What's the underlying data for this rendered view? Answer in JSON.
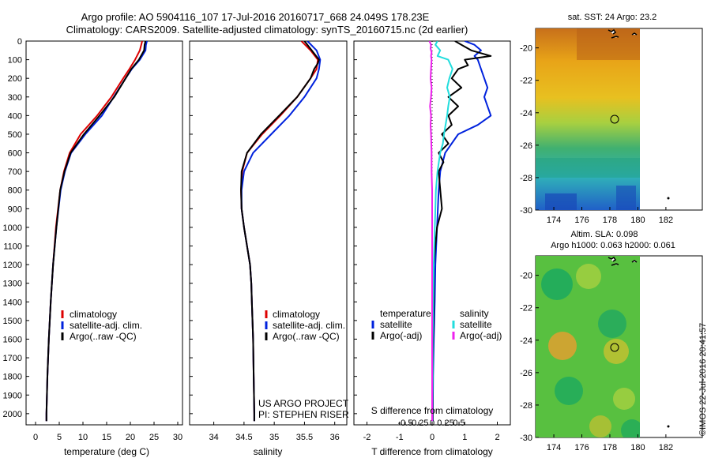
{
  "title_line1": "Argo profile: AO 5904116_107 17-Jul-2016 20160717_668 24.049S 178.23E",
  "title_line2": "Climatology: CARS2009. Satellite-adjusted climatology: synTS_20160715.nc (2d earlier)",
  "credit": "US ARGO PROJECT",
  "pi": "PI: STEPHEN RISER",
  "timestamp": "©IMOS 22-Jul-2016 20:41:57",
  "colors": {
    "clim": "#dd0000",
    "sat": "#0022dd",
    "argo": "#000000",
    "sat_s": "#22dddd",
    "argo_s": "#ee22ee"
  },
  "chart_data": [
    {
      "type": "line",
      "id": "temp",
      "xlabel": "temperature (deg C)",
      "xlim": [
        -2,
        31
      ],
      "xticks": [
        0,
        5,
        10,
        15,
        20,
        25,
        30
      ],
      "ylim": [
        0,
        2060
      ],
      "yticks": [
        0,
        100,
        200,
        300,
        400,
        500,
        600,
        700,
        800,
        900,
        1000,
        1100,
        1200,
        1300,
        1400,
        1500,
        1600,
        1700,
        1800,
        1900,
        2000
      ],
      "legend": [
        "climatology",
        "satellite-adj. clim.",
        "Argo(..raw -QC)"
      ],
      "series": [
        {
          "name": "climatology",
          "depth": [
            0,
            50,
            100,
            150,
            200,
            300,
            400,
            500,
            600,
            700,
            800,
            1000,
            1200,
            1400,
            1600,
            1800,
            2000,
            2040
          ],
          "values": [
            22.5,
            22.0,
            21.0,
            19.8,
            18.5,
            16.0,
            13.0,
            9.5,
            7.2,
            6.0,
            5.2,
            4.3,
            3.7,
            3.2,
            2.8,
            2.5,
            2.3,
            2.3
          ]
        },
        {
          "name": "satellite-adj. clim.",
          "depth": [
            0,
            20,
            50,
            100,
            150,
            200,
            300,
            400,
            500,
            600,
            700,
            800,
            1000,
            1200,
            1400,
            1600,
            1800,
            2000,
            2040
          ],
          "values": [
            23.5,
            23.3,
            23.2,
            22.0,
            20.3,
            19.0,
            16.5,
            14.0,
            10.5,
            7.5,
            6.2,
            5.3,
            4.4,
            3.7,
            3.2,
            2.8,
            2.5,
            2.3,
            2.3
          ]
        },
        {
          "name": "Argo(..raw -QC)",
          "depth": [
            0,
            20,
            50,
            100,
            150,
            200,
            300,
            400,
            500,
            600,
            700,
            800,
            1000,
            1200,
            1400,
            1600,
            1800,
            2000,
            2040
          ],
          "values": [
            23.2,
            23.0,
            22.9,
            21.8,
            20.2,
            19.0,
            16.6,
            13.5,
            10.2,
            7.4,
            6.1,
            5.2,
            4.4,
            3.7,
            3.2,
            2.8,
            2.5,
            2.3,
            2.3
          ]
        }
      ]
    },
    {
      "type": "line",
      "id": "psal",
      "xlabel": "salinity",
      "xlim": [
        33.6,
        36.2
      ],
      "xticks": [
        34,
        34.5,
        35,
        35.5,
        36
      ],
      "xticklabels": [
        "34",
        "34.5",
        "35",
        "35.5",
        "36"
      ],
      "ylim": [
        0,
        2060
      ],
      "legend": [
        "climatology",
        "satellite-adj. clim.",
        "Argo(..raw -QC)"
      ],
      "series": [
        {
          "name": "climatology",
          "depth": [
            0,
            50,
            100,
            150,
            200,
            300,
            400,
            500,
            600,
            700,
            800,
            900,
            1000,
            1100,
            1200,
            1300,
            1400,
            1600,
            1800,
            2000,
            2040
          ],
          "values": [
            35.45,
            35.6,
            35.72,
            35.7,
            35.6,
            35.38,
            35.1,
            34.8,
            34.55,
            34.47,
            34.45,
            34.46,
            34.5,
            34.55,
            34.6,
            34.62,
            34.63,
            34.65,
            34.66,
            34.67,
            34.67
          ]
        },
        {
          "name": "satellite-adj. clim.",
          "depth": [
            0,
            50,
            100,
            150,
            200,
            300,
            400,
            500,
            600,
            700,
            800,
            900,
            1000,
            1100,
            1200,
            1300,
            1400,
            1600,
            1800,
            2000,
            2040
          ],
          "values": [
            35.55,
            35.7,
            35.76,
            35.74,
            35.7,
            35.5,
            35.25,
            34.95,
            34.65,
            34.5,
            34.46,
            34.46,
            34.5,
            34.55,
            34.6,
            34.62,
            34.63,
            34.65,
            34.66,
            34.67,
            34.67
          ]
        },
        {
          "name": "Argo(..raw -QC)",
          "depth": [
            0,
            50,
            100,
            120,
            150,
            200,
            300,
            400,
            500,
            600,
            700,
            800,
            900,
            1000,
            1100,
            1200,
            1300,
            1400,
            1600,
            1800,
            2000,
            2040
          ],
          "values": [
            35.5,
            35.62,
            35.74,
            35.72,
            35.66,
            35.6,
            35.38,
            35.08,
            34.78,
            34.55,
            34.46,
            34.45,
            34.46,
            34.5,
            34.55,
            34.6,
            34.62,
            34.63,
            34.65,
            34.66,
            34.67,
            34.67
          ]
        }
      ]
    },
    {
      "type": "line",
      "id": "diff",
      "xlabel": "T difference from climatology",
      "xlabel_top": "S difference from climatology",
      "xlim": [
        -2.4,
        2.4
      ],
      "xticks": [
        -2,
        -1,
        0,
        1,
        2
      ],
      "sticks": [
        -0.5,
        -0.25,
        0,
        0.25,
        0.5
      ],
      "sticklabels": [
        "-0.5",
        "-0.25",
        "0",
        "0.25",
        "0.5"
      ],
      "ylim": [
        0,
        2060
      ],
      "legend_t_head": "temperature",
      "legend_s_head": "salinity",
      "legend_t": [
        "satellite",
        "Argo(-adj)"
      ],
      "legend_s": [
        "satellite",
        "Argo(-adj)"
      ],
      "series": [
        {
          "name": "T satellite",
          "depth": [
            0,
            20,
            50,
            80,
            100,
            150,
            200,
            250,
            300,
            350,
            400,
            450,
            500,
            600,
            700,
            800,
            1000,
            1200,
            1400,
            1600,
            1800,
            2000,
            2040
          ],
          "values": [
            1.0,
            1.3,
            1.5,
            1.3,
            1.4,
            1.5,
            1.6,
            1.7,
            1.6,
            1.7,
            1.8,
            1.4,
            0.8,
            0.4,
            0.25,
            0.2,
            0.15,
            0.1,
            0.08,
            0.05,
            0.03,
            0.02,
            0.02
          ]
        },
        {
          "name": "T Argo(-adj)",
          "depth": [
            0,
            20,
            50,
            80,
            100,
            130,
            150,
            200,
            250,
            300,
            350,
            400,
            450,
            500,
            550,
            600,
            650,
            700,
            800,
            900,
            1000,
            1100,
            1200,
            1400,
            1600,
            1800,
            2000,
            2040
          ],
          "values": [
            0.7,
            0.9,
            1.2,
            1.8,
            1.0,
            1.1,
            0.8,
            0.6,
            0.9,
            0.5,
            0.8,
            0.5,
            0.6,
            0.3,
            0.5,
            0.2,
            0.35,
            0.2,
            0.25,
            0.3,
            0.15,
            0.1,
            0.05,
            0.05,
            0.03,
            0.02,
            0.01,
            0.01
          ]
        },
        {
          "name": "S satellite",
          "depth": [
            0,
            20,
            50,
            80,
            100,
            150,
            200,
            250,
            300,
            350,
            400,
            450,
            500,
            550,
            600,
            700,
            800,
            1000,
            1200,
            1400,
            1600,
            1800,
            2000,
            2040
          ],
          "values": [
            0.1,
            0.06,
            0.15,
            0.1,
            0.3,
            0.38,
            0.32,
            0.28,
            0.33,
            0.3,
            0.28,
            0.25,
            0.22,
            0.2,
            0.15,
            0.1,
            0.07,
            0.05,
            0.03,
            0.02,
            0.01,
            0.01,
            0.0,
            0.0
          ]
        },
        {
          "name": "S Argo(-adj)",
          "depth": [
            0,
            20,
            40,
            60,
            80,
            100,
            150,
            200,
            250,
            300,
            350,
            400,
            450,
            500,
            600,
            700,
            800,
            1000,
            1200,
            1400,
            1600,
            1800,
            2000,
            2040
          ],
          "values": [
            -0.05,
            -0.02,
            -0.03,
            -0.01,
            -0.02,
            -0.01,
            -0.02,
            -0.03,
            -0.01,
            -0.02,
            -0.04,
            -0.02,
            -0.03,
            -0.02,
            -0.01,
            -0.01,
            0.0,
            0.0,
            0.0,
            0.0,
            0.0,
            0.0,
            0.0,
            0.0
          ]
        }
      ]
    },
    {
      "type": "heatmap",
      "id": "sst",
      "title": "sat. SST: 24  Argo: 23.2",
      "xlim": [
        172.7,
        184.6
      ],
      "ylim": [
        -30,
        -18.8
      ],
      "xticks": [
        174,
        176,
        178,
        180,
        182
      ],
      "yticks": [
        -20,
        -22,
        -24,
        -26,
        -28,
        -30
      ],
      "argo_location": [
        178.23,
        -24.049
      ]
    },
    {
      "type": "heatmap",
      "id": "sla",
      "title_line1": "Altim. SLA: 0.098",
      "title_line2": "Argo h1000: 0.063 h2000: 0.061",
      "xlim": [
        172.7,
        184.6
      ],
      "ylim": [
        -30,
        -18.8
      ],
      "xticks": [
        174,
        176,
        178,
        180,
        182
      ],
      "yticks": [
        -20,
        -22,
        -24,
        -26,
        -28,
        -30
      ],
      "argo_location": [
        178.23,
        -24.049
      ]
    }
  ]
}
